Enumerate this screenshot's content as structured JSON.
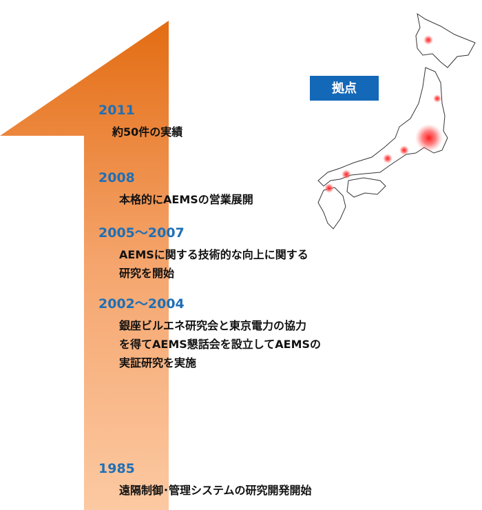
{
  "badge": "拠点",
  "timeline": [
    {
      "year": "2011",
      "lines": [
        "約50件の実績"
      ]
    },
    {
      "year": "2008",
      "lines": [
        "本格的にAEMSの営業展開"
      ]
    },
    {
      "year": "2005～2007",
      "lines": [
        "AEMSに関する技術的な向上に関する",
        "研究を開始"
      ]
    },
    {
      "year": "2002～2004",
      "lines": [
        "銀座ビルエネ研究会と東京電力の協力",
        "を得てAEMS懇話会を設立してAEMSの",
        "実証研究を実施"
      ]
    },
    {
      "year": "1985",
      "lines": [
        "遠隔制御･管理システムの研究開発開始"
      ]
    }
  ]
}
